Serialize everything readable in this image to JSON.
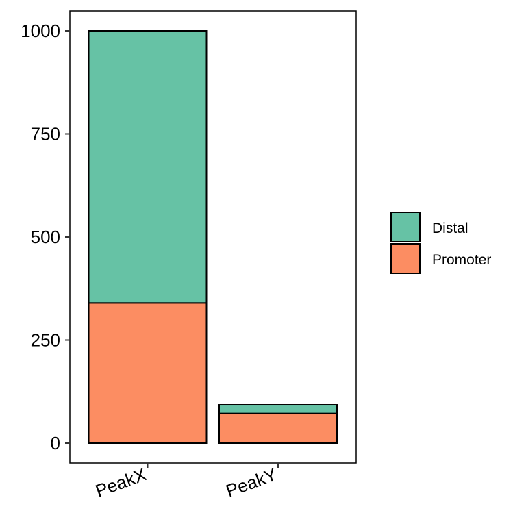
{
  "chart_data": {
    "type": "bar",
    "stacked": true,
    "title": "",
    "xlabel": "",
    "ylabel": "",
    "categories": [
      "PeakX",
      "PeakY"
    ],
    "series": [
      {
        "name": "Promoter",
        "color": "#FC8D62",
        "values": [
          340,
          72
        ]
      },
      {
        "name": "Distal",
        "color": "#66C2A5",
        "values": [
          660,
          21
        ]
      }
    ],
    "ylim": [
      0,
      1000
    ],
    "yticks": [
      0,
      250,
      500,
      750,
      1000
    ],
    "grid": false,
    "legend": {
      "position": "right",
      "entries": [
        {
          "label": "Distal",
          "color": "#66C2A5"
        },
        {
          "label": "Promoter",
          "color": "#FC8D62"
        }
      ]
    }
  }
}
